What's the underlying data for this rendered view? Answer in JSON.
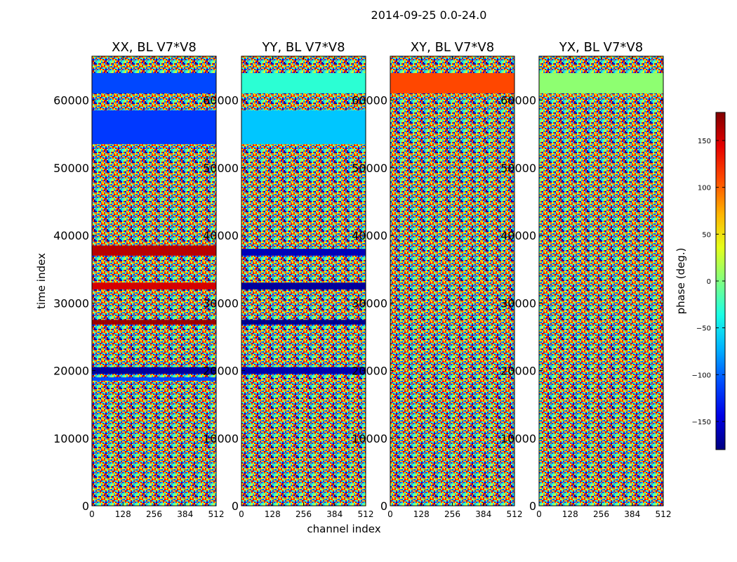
{
  "chart_data": {
    "type": "heatmap",
    "title": "2014-09-25 0.0-24.0",
    "xlabel": "channel index",
    "ylabel": "time index",
    "xlim": [
      0,
      512
    ],
    "ylim": [
      0,
      66500
    ],
    "xticks": [
      0,
      128,
      256,
      384,
      512
    ],
    "yticks": [
      0,
      10000,
      20000,
      30000,
      40000,
      50000,
      60000
    ],
    "colorbar": {
      "label": "phase (deg.)",
      "range": [
        -180,
        180
      ],
      "ticks": [
        -150,
        -100,
        -50,
        0,
        50,
        100,
        150
      ],
      "colormap": "jet"
    },
    "panels": [
      {
        "title": "XX, BL V7*V8",
        "bands": [
          {
            "t0": 61000,
            "t1": 64000,
            "phase": -110
          },
          {
            "t0": 53500,
            "t1": 58500,
            "phase": -115
          },
          {
            "t0": 37000,
            "t1": 38500,
            "phase": 160
          },
          {
            "t0": 32000,
            "t1": 33000,
            "phase": 150
          },
          {
            "t0": 26800,
            "t1": 27500,
            "phase": 170
          },
          {
            "t0": 19500,
            "t1": 20500,
            "phase": -170
          },
          {
            "t0": 18500,
            "t1": 19000,
            "phase": -110
          }
        ]
      },
      {
        "title": "YY, BL V7*V8",
        "bands": [
          {
            "t0": 61000,
            "t1": 64000,
            "phase": -30
          },
          {
            "t0": 53500,
            "t1": 58500,
            "phase": -65
          },
          {
            "t0": 37000,
            "t1": 38000,
            "phase": -160
          },
          {
            "t0": 32000,
            "t1": 33000,
            "phase": -170
          },
          {
            "t0": 26800,
            "t1": 27500,
            "phase": -175
          },
          {
            "t0": 19500,
            "t1": 20500,
            "phase": -165
          }
        ]
      },
      {
        "title": "XY, BL V7*V8",
        "bands": [
          {
            "t0": 61000,
            "t1": 64000,
            "phase": 110
          }
        ]
      },
      {
        "title": "YX, BL V7*V8",
        "bands": [
          {
            "t0": 61000,
            "t1": 64000,
            "phase": 5
          }
        ]
      }
    ]
  }
}
